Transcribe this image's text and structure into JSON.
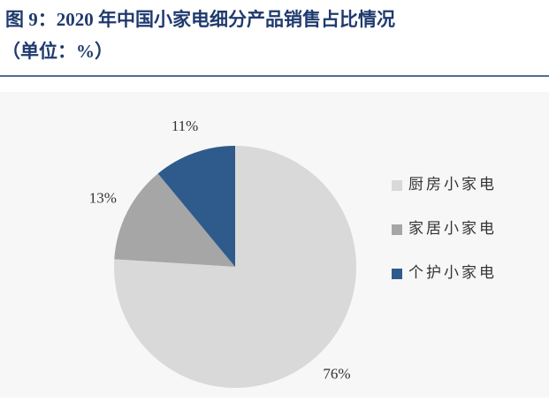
{
  "chart_data": {
    "type": "pie",
    "title": "图 9：2020 年中国小家电细分产品销售占比情况",
    "subtitle": "（单位：%）",
    "categories": [
      "厨房小家电",
      "家居小家电",
      "个护小家电"
    ],
    "values": [
      76,
      13,
      11
    ],
    "value_labels": [
      "76%",
      "13%",
      "11%"
    ],
    "colors": [
      "#d9d9d9",
      "#a6a6a6",
      "#2e5b8c"
    ],
    "legend": "right"
  }
}
